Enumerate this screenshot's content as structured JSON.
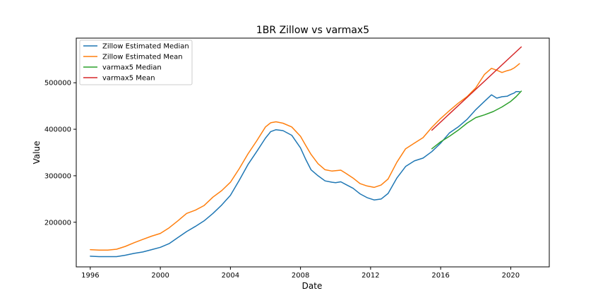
{
  "chart_data": {
    "type": "line",
    "title": "1BR Zillow vs varmax5",
    "xlabel": "Date",
    "ylabel": "Value",
    "xlim": [
      1995.2,
      2022.2
    ],
    "ylim": [
      104000,
      596000
    ],
    "x_ticks": [
      1996,
      2000,
      2004,
      2008,
      2012,
      2016,
      2020
    ],
    "x_tick_labels": [
      "1996",
      "2000",
      "2004",
      "2008",
      "2012",
      "2016",
      "2020"
    ],
    "y_ticks": [
      200000,
      300000,
      400000,
      500000
    ],
    "y_tick_labels": [
      "200000",
      "300000",
      "400000",
      "500000"
    ],
    "legend_position": "top-left",
    "colors": {
      "Zillow Estimated Median": "#1f77b4",
      "Zillow Estimated Mean": "#ff7f0e",
      "varmax5 Median": "#2ca02c",
      "varmax5 Mean": "#d62728"
    },
    "series": [
      {
        "name": "Zillow Estimated Median",
        "x": [
          1996.0,
          1996.5,
          1997.0,
          1997.5,
          1998.0,
          1998.5,
          1999.0,
          1999.5,
          2000.0,
          2000.5,
          2001.0,
          2001.5,
          2002.0,
          2002.5,
          2003.0,
          2003.5,
          2004.0,
          2004.5,
          2005.0,
          2005.5,
          2006.0,
          2006.3,
          2006.6,
          2007.0,
          2007.5,
          2008.0,
          2008.3,
          2008.6,
          2009.0,
          2009.4,
          2009.8,
          2010.0,
          2010.3,
          2010.6,
          2011.0,
          2011.4,
          2011.8,
          2012.2,
          2012.6,
          2013.0,
          2013.5,
          2014.0,
          2014.5,
          2015.0,
          2015.5,
          2016.0,
          2016.5,
          2017.0,
          2017.5,
          2018.0,
          2018.5,
          2018.9,
          2019.2,
          2019.5,
          2019.8,
          2020.0,
          2020.2,
          2020.3,
          2020.5
        ],
        "y": [
          127000,
          126000,
          126000,
          126000,
          129000,
          133000,
          136000,
          141000,
          146000,
          154000,
          167000,
          180000,
          191000,
          203000,
          219000,
          237000,
          258000,
          290000,
          324000,
          352000,
          381000,
          395000,
          399000,
          397000,
          387000,
          360000,
          335000,
          313000,
          300000,
          289000,
          286000,
          285000,
          287000,
          281000,
          273000,
          261000,
          253000,
          248000,
          250000,
          262000,
          295000,
          320000,
          332000,
          338000,
          352000,
          370000,
          392000,
          405000,
          421000,
          442000,
          460000,
          474000,
          467000,
          470000,
          471000,
          475000,
          478000,
          481000,
          481000
        ]
      },
      {
        "name": "Zillow Estimated Mean",
        "x": [
          1996.0,
          1996.5,
          1997.0,
          1997.5,
          1998.0,
          1998.5,
          1999.0,
          1999.5,
          2000.0,
          2000.5,
          2001.0,
          2001.5,
          2002.0,
          2002.5,
          2003.0,
          2003.5,
          2004.0,
          2004.5,
          2005.0,
          2005.5,
          2006.0,
          2006.3,
          2006.6,
          2007.0,
          2007.5,
          2008.0,
          2008.3,
          2008.6,
          2009.0,
          2009.4,
          2009.8,
          2010.0,
          2010.3,
          2010.6,
          2011.0,
          2011.4,
          2011.8,
          2012.2,
          2012.6,
          2013.0,
          2013.5,
          2014.0,
          2014.5,
          2015.0,
          2015.5,
          2016.0,
          2016.5,
          2017.0,
          2017.5,
          2018.0,
          2018.5,
          2018.9,
          2019.2,
          2019.5,
          2019.8,
          2020.0,
          2020.2,
          2020.3,
          2020.5
        ],
        "y": [
          141000,
          140000,
          140000,
          142000,
          148000,
          156000,
          163000,
          170000,
          176000,
          188000,
          203000,
          219000,
          226000,
          236000,
          254000,
          268000,
          286000,
          315000,
          347000,
          375000,
          405000,
          414000,
          416000,
          413000,
          405000,
          385000,
          365000,
          346000,
          326000,
          313000,
          310000,
          311000,
          312000,
          305000,
          295000,
          283000,
          278000,
          275000,
          280000,
          293000,
          329000,
          358000,
          370000,
          382000,
          404000,
          423000,
          440000,
          456000,
          470000,
          489000,
          518000,
          531000,
          527000,
          522000,
          526000,
          528000,
          532000,
          535000,
          541000
        ]
      },
      {
        "name": "varmax5 Median",
        "x": [
          2015.5,
          2016.0,
          2016.5,
          2017.0,
          2017.5,
          2018.0,
          2018.5,
          2019.0,
          2019.5,
          2020.0,
          2020.3,
          2020.6
        ],
        "y": [
          358000,
          373000,
          385000,
          398000,
          413000,
          425000,
          431000,
          438000,
          448000,
          460000,
          470000,
          482000
        ]
      },
      {
        "name": "varmax5 Mean",
        "x": [
          2015.5,
          2020.6
        ],
        "y": [
          398000,
          577000
        ]
      }
    ]
  }
}
